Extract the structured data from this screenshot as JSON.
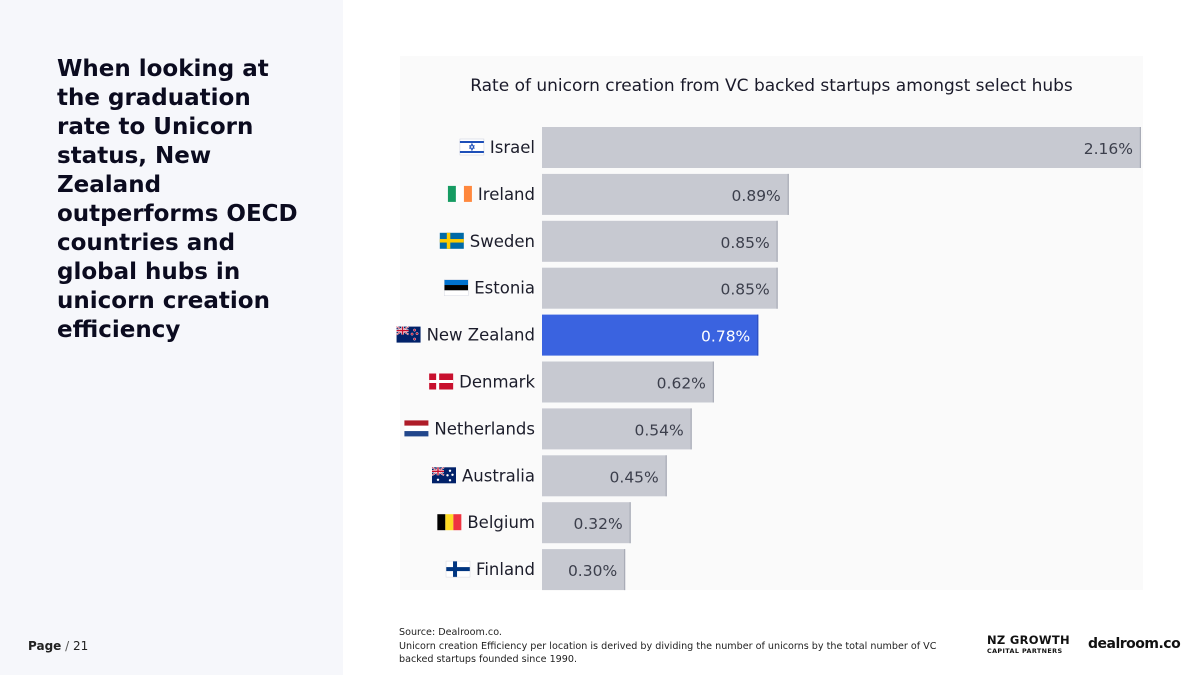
{
  "headline": "When looking at the graduation rate to Unicorn status, New Zealand outperforms OECD countries and global hubs in unicorn creation efficiency",
  "page": {
    "label": "Page",
    "separator": "/",
    "number": "21"
  },
  "footnote": {
    "source": "Source:  Dealroom.co.",
    "note": "Unicorn creation Efficiency per location  is derived by dividing the number of unicorns by the total number of VC backed startups founded since 1990."
  },
  "logos": {
    "nz_line1": "NZ GROWTH",
    "nz_line2": "CAPITAL PARTNERS",
    "dealroom": "dealroom.co"
  },
  "colors": {
    "bar_default": "#c7c9d1",
    "bar_highlight": "#3a63e0"
  },
  "chart_data": {
    "type": "bar",
    "orientation": "horizontal",
    "title": "Rate of unicorn creation from VC backed startups amongst select hubs",
    "categories": [
      "Israel",
      "Ireland",
      "Sweden",
      "Estonia",
      "New Zealand",
      "Denmark",
      "Netherlands",
      "Australia",
      "Belgium",
      "Finland"
    ],
    "flags": [
      "israel-flag",
      "ireland-flag",
      "sweden-flag",
      "estonia-flag",
      "new-zealand-flag",
      "denmark-flag",
      "netherlands-flag",
      "australia-flag",
      "belgium-flag",
      "finland-flag"
    ],
    "values": [
      2.16,
      0.89,
      0.85,
      0.85,
      0.78,
      0.62,
      0.54,
      0.45,
      0.32,
      0.3
    ],
    "labels": [
      "2.16%",
      "0.89%",
      "0.85%",
      "0.85%",
      "0.78%",
      "0.62%",
      "0.54%",
      "0.45%",
      "0.32%",
      "0.30%"
    ],
    "highlight": "New Zealand",
    "unit": "%",
    "xlim": [
      0,
      2.16
    ],
    "grid": false,
    "legend": "none"
  }
}
